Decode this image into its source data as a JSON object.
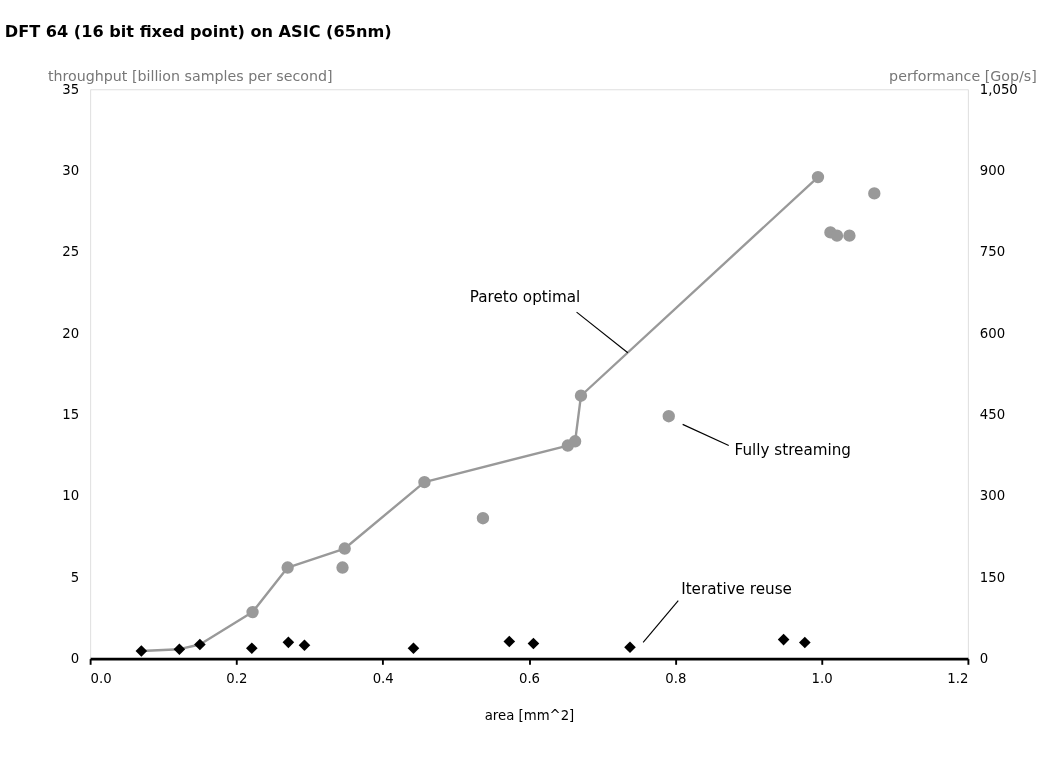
{
  "chart_data": {
    "type": "scatter",
    "title": "DFT 64 (16 bit fixed point) on ASIC (65nm)",
    "ylabel": "throughput [billion samples per second]",
    "y2label": "performance [Gop/s]",
    "xlabel": "area [mm^2]",
    "xlim": [
      0,
      1.2
    ],
    "xticks": [
      {
        "value": 0,
        "label": "0.0"
      },
      0.2,
      0.4,
      0.6,
      0.8,
      {
        "value": 1,
        "label": "1.0"
      },
      1.2
    ],
    "ylim": [
      0,
      35
    ],
    "yticks": [
      0,
      5,
      10,
      15,
      20,
      25,
      30,
      35
    ],
    "y2lim": [
      0,
      1050
    ],
    "y2ticks": [
      0,
      150,
      300,
      450,
      600,
      750,
      900,
      {
        "value": 1050,
        "label": "1,050"
      }
    ],
    "grid": false,
    "series": [
      {
        "type": "line",
        "color": "#999999",
        "marker": "none",
        "x": [
          0.07,
          0.122,
          0.15,
          0.222,
          0.27,
          0.348,
          0.457,
          0.653,
          0.663,
          0.671,
          0.995
        ],
        "values": [
          0.47,
          0.58,
          0.87,
          2.86,
          5.6,
          6.77,
          10.85,
          13.1,
          13.36,
          16.16,
          29.6
        ]
      },
      {
        "color": "#999999",
        "marker": "circle",
        "x": [
          0.222,
          0.27,
          0.345,
          0.348,
          0.457,
          0.537,
          0.653,
          0.663,
          0.671,
          0.791,
          0.995,
          1.012,
          1.021,
          1.038,
          1.072
        ],
        "values": [
          2.86,
          5.6,
          5.6,
          6.77,
          10.85,
          8.63,
          13.1,
          13.36,
          16.16,
          14.9,
          29.6,
          26.2,
          26.0,
          26.0,
          28.6
        ]
      },
      {
        "color": "#000000",
        "marker": "diamond",
        "x": [
          0.07,
          0.122,
          0.15,
          0.221,
          0.271,
          0.293,
          0.442,
          0.573,
          0.606,
          0.738,
          0.948,
          0.977
        ],
        "values": [
          0.47,
          0.58,
          0.87,
          0.64,
          1.0,
          0.82,
          0.64,
          1.05,
          0.93,
          0.7,
          1.17,
          0.99
        ]
      }
    ],
    "annotations": [
      {
        "text": "Pareto optimal",
        "x": 0.735,
        "y": 18.8
      },
      "Fully streaming",
      "Iterative reuse"
    ]
  }
}
